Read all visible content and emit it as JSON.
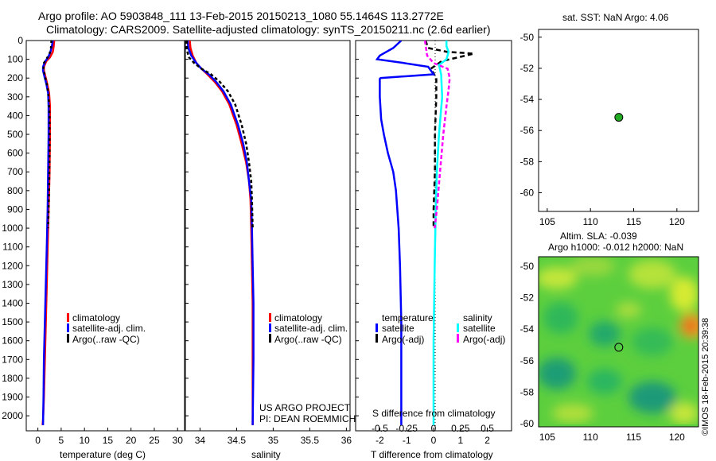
{
  "header": {
    "title_line1": "Argo profile: AO 5903848_111 13-Feb-2015 20150213_1080 55.1464S 113.2772E",
    "title_line2": "Climatology: CARS2009. Satellite-adjusted climatology: synTS_20150211.nc (2.6d earlier)"
  },
  "credits": {
    "project": "US ARGO PROJECT",
    "pi": "PI: DEAN ROEMMICH",
    "stamp": "©IMOS 18-Feb-2015 20:39:38"
  },
  "colors": {
    "climatology": "#ff0000",
    "satellite": "#0000ff",
    "argo": "#000000",
    "satellite_s": "#00ffff",
    "argo_adj_s": "#ff00ff"
  },
  "chart_data": [
    {
      "type": "line",
      "title": "",
      "xlabel": "temperature (deg C)",
      "ylabel": "",
      "xlim": [
        -2.5,
        31.5
      ],
      "ylim": [
        2080,
        0
      ],
      "xticks": [
        0,
        5,
        10,
        15,
        20,
        25,
        30
      ],
      "xtick_labels": [
        "0",
        "5",
        "10",
        "15",
        "20",
        "25",
        "30"
      ],
      "yticks": [
        0,
        100,
        200,
        300,
        400,
        500,
        600,
        700,
        800,
        900,
        1000,
        1100,
        1200,
        1300,
        1400,
        1500,
        1600,
        1700,
        1800,
        1900,
        2000
      ],
      "ytick_labels": [
        "0",
        "100",
        "200",
        "300",
        "400",
        "500",
        "600",
        "700",
        "800",
        "900",
        "1000",
        "1100",
        "1200",
        "1300",
        "1400",
        "1500",
        "1600",
        "1700",
        "1800",
        "1900",
        "2000"
      ],
      "legend": [
        "climatology",
        "satellite-adj. clim.",
        "Argo(..raw -QC)"
      ],
      "series": [
        {
          "name": "climatology",
          "color": "#ff0000",
          "dash": "",
          "points": [
            [
              3.5,
              0
            ],
            [
              3.4,
              30
            ],
            [
              3.2,
              60
            ],
            [
              2.6,
              90
            ],
            [
              1.8,
              110
            ],
            [
              1.3,
              140
            ],
            [
              1.3,
              160
            ],
            [
              1.6,
              190
            ],
            [
              2.0,
              230
            ],
            [
              2.4,
              280
            ],
            [
              2.6,
              350
            ],
            [
              2.6,
              500
            ],
            [
              2.5,
              700
            ],
            [
              2.3,
              900
            ],
            [
              2.1,
              1100
            ],
            [
              1.9,
              1300
            ],
            [
              1.7,
              1500
            ],
            [
              1.5,
              1700
            ],
            [
              1.3,
              1900
            ],
            [
              1.1,
              2020
            ],
            [
              1.0,
              2050
            ]
          ]
        },
        {
          "name": "satellite",
          "color": "#0000ff",
          "dash": "",
          "points": [
            [
              3.2,
              0
            ],
            [
              3.0,
              30
            ],
            [
              2.7,
              60
            ],
            [
              2.2,
              90
            ],
            [
              1.6,
              110
            ],
            [
              1.1,
              140
            ],
            [
              1.1,
              160
            ],
            [
              1.4,
              190
            ],
            [
              1.8,
              230
            ],
            [
              2.2,
              280
            ],
            [
              2.3,
              350
            ],
            [
              2.3,
              500
            ],
            [
              2.2,
              700
            ],
            [
              2.1,
              900
            ],
            [
              1.9,
              1100
            ],
            [
              1.7,
              1300
            ],
            [
              1.5,
              1500
            ],
            [
              1.3,
              1700
            ],
            [
              1.2,
              1900
            ],
            [
              1.1,
              2050
            ]
          ]
        },
        {
          "name": "Argo",
          "color": "#000000",
          "dash": "3,4",
          "points": [
            [
              2.9,
              0
            ],
            [
              2.8,
              40
            ],
            [
              2.5,
              70
            ],
            [
              1.8,
              100
            ],
            [
              1.3,
              120
            ],
            [
              1.2,
              150
            ],
            [
              1.5,
              190
            ],
            [
              2.0,
              240
            ],
            [
              2.3,
              300
            ],
            [
              2.5,
              400
            ],
            [
              2.5,
              600
            ],
            [
              2.4,
              800
            ],
            [
              2.2,
              1000
            ]
          ]
        }
      ]
    },
    {
      "type": "line",
      "title": "",
      "xlabel": "salinity",
      "ylabel": "",
      "xlim": [
        33.8,
        36.05
      ],
      "ylim": [
        2080,
        0
      ],
      "xticks": [
        34,
        34.5,
        35,
        35.5,
        36
      ],
      "xtick_labels": [
        "34",
        "34.5",
        "35",
        "35.5",
        "36"
      ],
      "legend": [
        "climatology",
        "satellite-adj. clim.",
        "Argo(..raw -QC)"
      ],
      "series": [
        {
          "name": "climatology",
          "color": "#ff0000",
          "dash": "",
          "points": [
            [
              33.86,
              0
            ],
            [
              33.87,
              40
            ],
            [
              33.9,
              80
            ],
            [
              33.95,
              120
            ],
            [
              34.02,
              150
            ],
            [
              34.1,
              180
            ],
            [
              34.2,
              220
            ],
            [
              34.3,
              270
            ],
            [
              34.4,
              340
            ],
            [
              34.5,
              450
            ],
            [
              34.57,
              550
            ],
            [
              34.63,
              650
            ],
            [
              34.67,
              750
            ],
            [
              34.69,
              850
            ],
            [
              34.7,
              1000
            ],
            [
              34.71,
              1200
            ],
            [
              34.72,
              1400
            ],
            [
              34.72,
              1700
            ],
            [
              34.72,
              2050
            ]
          ]
        },
        {
          "name": "satellite",
          "color": "#0000ff",
          "dash": "",
          "points": [
            [
              33.83,
              0
            ],
            [
              33.84,
              40
            ],
            [
              33.88,
              80
            ],
            [
              33.95,
              120
            ],
            [
              34.02,
              150
            ],
            [
              34.12,
              180
            ],
            [
              34.22,
              220
            ],
            [
              34.32,
              270
            ],
            [
              34.42,
              340
            ],
            [
              34.52,
              450
            ],
            [
              34.59,
              550
            ],
            [
              34.64,
              650
            ],
            [
              34.67,
              750
            ],
            [
              34.7,
              850
            ],
            [
              34.71,
              1000
            ],
            [
              34.72,
              1200
            ],
            [
              34.73,
              1400
            ],
            [
              34.73,
              1700
            ],
            [
              34.72,
              2050
            ]
          ]
        },
        {
          "name": "Argo",
          "color": "#000000",
          "dash": "4,3",
          "points": [
            [
              33.82,
              0
            ],
            [
              33.82,
              50
            ],
            [
              33.85,
              90
            ],
            [
              33.92,
              120
            ],
            [
              34.02,
              150
            ],
            [
              34.15,
              180
            ],
            [
              34.27,
              220
            ],
            [
              34.38,
              270
            ],
            [
              34.48,
              340
            ],
            [
              34.57,
              450
            ],
            [
              34.63,
              550
            ],
            [
              34.67,
              650
            ],
            [
              34.7,
              750
            ],
            [
              34.71,
              850
            ],
            [
              34.72,
              1000
            ]
          ]
        }
      ]
    },
    {
      "type": "line",
      "title": "",
      "xlabel": "T difference from climatology",
      "ylabel": "",
      "xlim": [
        -2.9,
        2.9
      ],
      "ylim": [
        2080,
        0
      ],
      "xticks": [
        -2,
        -1,
        0,
        1,
        2
      ],
      "xtick_labels": [
        "-2",
        "-1",
        "0",
        "1",
        "2"
      ],
      "top_axis_label": "S difference from climatology",
      "top_ticks": [
        -0.5,
        -0.25,
        0,
        0.25,
        0.5
      ],
      "top_tick_labels": [
        "-0.5",
        "-0.25",
        "0",
        "0.25",
        "0.5"
      ],
      "legend_title_t": "temperature",
      "legend_title_s": "salinity",
      "legend": [
        "satellite",
        "Argo(-adj)",
        "satellite",
        "Argo(-adj)"
      ],
      "series": [
        {
          "name": "T satellite",
          "color": "#0000ff",
          "dash": "",
          "points": [
            [
              -2.0,
              200
            ],
            [
              -2.0,
              250
            ],
            [
              -2.0,
              300
            ],
            [
              -1.95,
              420
            ],
            [
              -1.85,
              500
            ],
            [
              -1.7,
              600
            ],
            [
              -1.5,
              700
            ],
            [
              -1.4,
              800
            ],
            [
              -1.35,
              900
            ],
            [
              -1.3,
              1000
            ],
            [
              -1.25,
              1200
            ],
            [
              -1.2,
              1500
            ],
            [
              -1.2,
              2050
            ]
          ],
          "note": "low segment drawn on shared right panel"
        },
        {
          "name": "T Argo(-adj)",
          "color": "#000000",
          "dash": "6,4",
          "points": [
            [
              -0.3,
              0
            ],
            [
              -0.2,
              40
            ],
            [
              0.5,
              60
            ],
            [
              1.5,
              70
            ],
            [
              0.3,
              110
            ],
            [
              -0.1,
              150
            ],
            [
              0.1,
              200
            ],
            [
              0.1,
              300
            ],
            [
              0.05,
              500
            ],
            [
              0.05,
              700
            ],
            [
              0.0,
              900
            ],
            [
              0.0,
              1000
            ]
          ]
        },
        {
          "name": "S satellite",
          "color": "#00ffff",
          "dash": "",
          "points": [
            [
              0.12,
              0
            ],
            [
              0.12,
              30
            ],
            [
              0.14,
              60
            ],
            [
              0.12,
              100
            ],
            [
              0.05,
              130
            ],
            [
              0.07,
              180
            ],
            [
              0.08,
              300
            ],
            [
              0.05,
              500
            ],
            [
              0.03,
              700
            ],
            [
              0.02,
              900
            ],
            [
              0.01,
              1200
            ],
            [
              0.0,
              1600
            ],
            [
              0.0,
              2050
            ]
          ]
        },
        {
          "name": "S Argo(-adj)",
          "color": "#ff00ff",
          "dash": "5,3",
          "points": [
            [
              -0.08,
              0
            ],
            [
              -0.07,
              40
            ],
            [
              -0.06,
              80
            ],
            [
              0.0,
              120
            ],
            [
              0.13,
              150
            ],
            [
              0.15,
              200
            ],
            [
              0.14,
              260
            ],
            [
              0.12,
              350
            ],
            [
              0.09,
              500
            ],
            [
              0.06,
              700
            ],
            [
              0.03,
              900
            ],
            [
              0.01,
              1000
            ]
          ]
        }
      ]
    },
    {
      "type": "scatter",
      "title": "sat. SST: NaN Argo: 4.06",
      "xlim": [
        104,
        122.5
      ],
      "ylim": [
        -61.2,
        -49.5
      ],
      "xticks": [
        105,
        110,
        115,
        120
      ],
      "xtick_labels": [
        "105",
        "110",
        "115",
        "120"
      ],
      "yticks": [
        -50,
        -52,
        -54,
        -56,
        -58,
        -60
      ],
      "ytick_labels": [
        "-50",
        "-52",
        "-54",
        "-56",
        "-58",
        "-60"
      ],
      "points": [
        {
          "lon": 113.28,
          "lat": -55.15,
          "color": "#22aa22"
        }
      ]
    },
    {
      "type": "heatmap",
      "title": "Altim. SLA: -0.039",
      "subtitle": "Argo h1000: -0.012 h2000: NaN",
      "xlim": [
        104,
        122.5
      ],
      "ylim": [
        -60.2,
        -49.4
      ],
      "xticks": [
        105,
        110,
        115,
        120
      ],
      "xtick_labels": [
        "105",
        "110",
        "115",
        "120"
      ],
      "yticks": [
        -50,
        -52,
        -54,
        -56,
        -58,
        -60
      ],
      "ytick_labels": [
        "-50",
        "-52",
        "-54",
        "-56",
        "-58",
        "-60"
      ],
      "points": [
        {
          "lon": 113.28,
          "lat": -55.15
        }
      ]
    }
  ]
}
